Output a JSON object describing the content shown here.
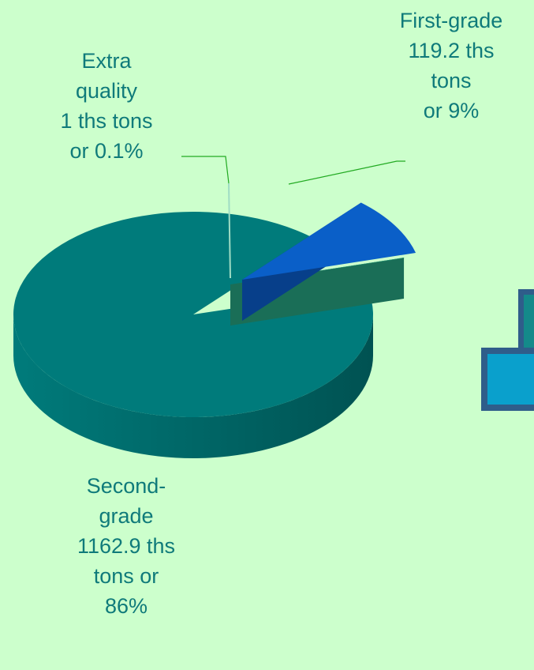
{
  "chart_data": {
    "type": "pie",
    "title": "",
    "slices": [
      {
        "category": "Second-grade",
        "value": 1162.9,
        "unit": "ths tons",
        "percent": 86,
        "color": "#007b7b",
        "side_color": "#005252",
        "label_lines": [
          "Second-",
          "grade",
          "1162.9 ths",
          "tons or",
          "86%"
        ]
      },
      {
        "category": "Extra quality",
        "value": 1,
        "unit": "ths tons",
        "percent": 0.1,
        "color": "#2c9c7c",
        "side_color": "#1a6e57",
        "label_lines": [
          "Extra",
          "quality",
          "1 ths tons",
          "or 0.1%"
        ]
      },
      {
        "category": "First-grade",
        "value": 119.2,
        "unit": "ths tons",
        "percent": 9,
        "color": "#0a5fc8",
        "side_color": "#073f8a",
        "label_lines": [
          "First-grade",
          "119.2 ths",
          "tons",
          "or 9%"
        ]
      }
    ],
    "label_color": "#0f7a7a",
    "leader_line_color": "#22aa22",
    "background": "#ccffcc"
  }
}
